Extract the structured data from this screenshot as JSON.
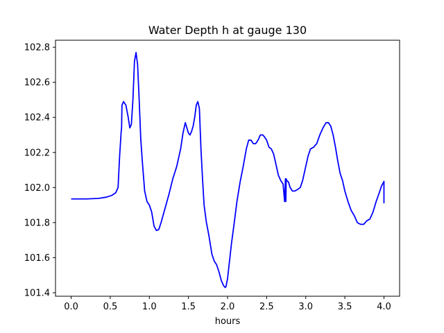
{
  "chart_data": {
    "type": "line",
    "title": "Water Depth h at gauge 130",
    "xlabel": "hours",
    "ylabel": "",
    "xlim": [
      -0.2,
      4.2
    ],
    "ylim": [
      101.38,
      102.84
    ],
    "xticks": [
      0.0,
      0.5,
      1.0,
      1.5,
      2.0,
      2.5,
      3.0,
      3.5,
      4.0
    ],
    "xtick_labels": [
      "0.0",
      "0.5",
      "1.0",
      "1.5",
      "2.0",
      "2.5",
      "3.0",
      "3.5",
      "4.0"
    ],
    "yticks": [
      101.4,
      101.6,
      101.8,
      102.0,
      102.2,
      102.4,
      102.6,
      102.8
    ],
    "ytick_labels": [
      "101.4",
      "101.6",
      "101.8",
      "102.0",
      "102.2",
      "102.4",
      "102.6",
      "102.8"
    ],
    "grid": false,
    "series": [
      {
        "color": "#0000ff",
        "x": [
          0.0,
          0.2,
          0.35,
          0.45,
          0.52,
          0.57,
          0.6,
          0.62,
          0.64,
          0.645,
          0.65,
          0.67,
          0.7,
          0.73,
          0.75,
          0.77,
          0.79,
          0.81,
          0.83,
          0.85,
          0.87,
          0.89,
          0.91,
          0.94,
          0.97,
          1.0,
          1.03,
          1.06,
          1.09,
          1.12,
          1.15,
          1.2,
          1.25,
          1.3,
          1.35,
          1.4,
          1.43,
          1.46,
          1.48,
          1.5,
          1.52,
          1.54,
          1.56,
          1.58,
          1.6,
          1.62,
          1.64,
          1.66,
          1.68,
          1.7,
          1.73,
          1.76,
          1.8,
          1.83,
          1.86,
          1.89,
          1.92,
          1.95,
          1.97,
          1.98,
          2.0,
          2.02,
          2.05,
          2.08,
          2.12,
          2.16,
          2.2,
          2.24,
          2.27,
          2.3,
          2.33,
          2.36,
          2.39,
          2.42,
          2.45,
          2.47,
          2.5,
          2.53,
          2.56,
          2.59,
          2.62,
          2.65,
          2.68,
          2.71,
          2.73,
          2.74,
          2.745,
          2.75,
          2.755,
          2.76,
          2.78,
          2.8,
          2.83,
          2.86,
          2.9,
          2.93,
          2.96,
          3.0,
          3.03,
          3.06,
          3.1,
          3.14,
          3.18,
          3.22,
          3.26,
          3.29,
          3.32,
          3.35,
          3.38,
          3.41,
          3.44,
          3.47,
          3.5,
          3.54,
          3.58,
          3.62,
          3.66,
          3.7,
          3.74,
          3.78,
          3.82,
          3.86,
          3.9,
          3.94,
          3.97,
          3.995,
          4.0,
          4.0
        ],
        "y": [
          101.935,
          101.935,
          101.938,
          101.945,
          101.955,
          101.97,
          102.0,
          102.18,
          102.32,
          102.34,
          102.47,
          102.49,
          102.47,
          102.4,
          102.34,
          102.36,
          102.5,
          102.72,
          102.77,
          102.7,
          102.5,
          102.28,
          102.15,
          101.98,
          101.92,
          101.9,
          101.86,
          101.78,
          101.755,
          101.76,
          101.8,
          101.88,
          101.96,
          102.05,
          102.12,
          102.22,
          102.31,
          102.37,
          102.34,
          102.31,
          102.3,
          102.32,
          102.35,
          102.4,
          102.47,
          102.49,
          102.45,
          102.22,
          102.05,
          101.9,
          101.8,
          101.73,
          101.62,
          101.58,
          101.56,
          101.52,
          101.47,
          101.44,
          101.43,
          101.435,
          101.48,
          101.56,
          101.68,
          101.78,
          101.92,
          102.03,
          102.12,
          102.22,
          102.27,
          102.27,
          102.25,
          102.25,
          102.27,
          102.3,
          102.3,
          102.29,
          102.27,
          102.23,
          102.22,
          102.19,
          102.13,
          102.07,
          102.04,
          102.02,
          101.92,
          102.05,
          101.92,
          102.05,
          102.04,
          102.04,
          102.03,
          102.0,
          101.98,
          101.98,
          101.99,
          102.0,
          102.04,
          102.12,
          102.18,
          102.22,
          102.23,
          102.25,
          102.3,
          102.34,
          102.37,
          102.37,
          102.35,
          102.3,
          102.23,
          102.15,
          102.08,
          102.04,
          101.98,
          101.92,
          101.87,
          101.84,
          101.8,
          101.79,
          101.79,
          101.81,
          101.82,
          101.86,
          101.92,
          101.97,
          102.01,
          102.03,
          102.035,
          101.91
        ]
      }
    ]
  }
}
